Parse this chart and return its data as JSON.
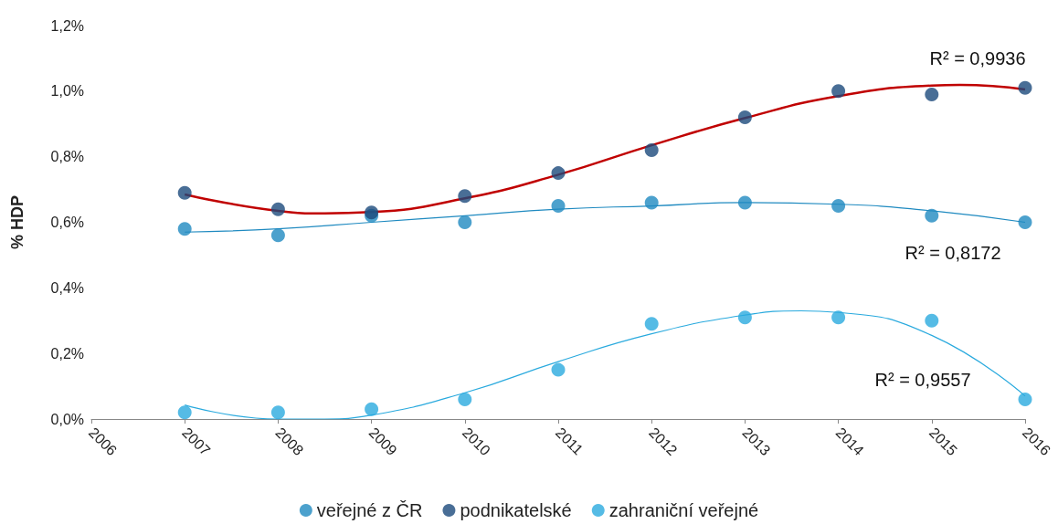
{
  "chart_data": {
    "type": "scatter",
    "ylabel": "% HDP",
    "xlim": [
      2006,
      2016
    ],
    "xticks": [
      2006,
      2007,
      2008,
      2009,
      2010,
      2011,
      2012,
      2013,
      2014,
      2015,
      2016
    ],
    "ylim": [
      0,
      1.2
    ],
    "yticks": [
      {
        "value": 0,
        "label": "0,0%"
      },
      {
        "value": 0.2,
        "label": "0,2%"
      },
      {
        "value": 0.4,
        "label": "0,4%"
      },
      {
        "value": 0.6,
        "label": "0,6%"
      },
      {
        "value": 0.8,
        "label": "0,8%"
      },
      {
        "value": 1.0,
        "label": "1,0%"
      },
      {
        "value": 1.2,
        "label": "1,2%"
      }
    ],
    "grid": false,
    "legend": "bottom",
    "marker": "circle",
    "series": [
      {
        "name": "veřejné z ČR",
        "color": "#1f8ac0",
        "x": [
          2007,
          2008,
          2009,
          2010,
          2011,
          2012,
          2013,
          2014,
          2015,
          2016
        ],
        "values": [
          0.58,
          0.56,
          0.62,
          0.6,
          0.65,
          0.66,
          0.66,
          0.65,
          0.62,
          0.6
        ]
      },
      {
        "name": "podnikatelské",
        "color": "#1b4a7c",
        "x": [
          2007,
          2008,
          2009,
          2010,
          2011,
          2012,
          2013,
          2014,
          2015,
          2016
        ],
        "values": [
          0.69,
          0.64,
          0.63,
          0.68,
          0.75,
          0.82,
          0.92,
          1.0,
          0.99,
          1.01
        ]
      },
      {
        "name": "zahraniční veřejné",
        "color": "#2aaade",
        "x": [
          2007,
          2008,
          2009,
          2010,
          2011,
          2012,
          2013,
          2014,
          2015,
          2016
        ],
        "values": [
          0.02,
          0.02,
          0.03,
          0.06,
          0.15,
          0.29,
          0.31,
          0.31,
          0.3,
          0.06
        ]
      },
      {
        "type": "line",
        "marker": "none",
        "color": "#1f8ac0",
        "x": [
          2007,
          2008,
          2009,
          2010,
          2011,
          2012,
          2013,
          2014,
          2015,
          2016
        ],
        "values": [
          0.57,
          0.58,
          0.6,
          0.62,
          0.64,
          0.65,
          0.66,
          0.655,
          0.635,
          0.6
        ]
      },
      {
        "type": "line",
        "marker": "none",
        "color": "#c00000",
        "x": [
          2007,
          2008,
          2008.5,
          2009,
          2010,
          2011,
          2012,
          2013,
          2014,
          2015,
          2015.3,
          2016
        ],
        "values": [
          0.685,
          0.635,
          0.627,
          0.631,
          0.673,
          0.745,
          0.835,
          0.918,
          0.985,
          1.017,
          1.019,
          1.005
        ]
      },
      {
        "type": "line",
        "marker": "none",
        "color": "#2aaade",
        "x": [
          2007,
          2008,
          2008.5,
          2009,
          2010,
          2011,
          2012,
          2013,
          2013.6,
          2014,
          2015,
          2016
        ],
        "values": [
          0.043,
          0.0,
          0.0,
          0.012,
          0.08,
          0.175,
          0.26,
          0.317,
          0.33,
          0.325,
          0.255,
          0.07
        ]
      }
    ],
    "annotations": [
      "R² = 0,9936",
      "R² = 0,8172",
      "R² = 0,9557"
    ]
  }
}
